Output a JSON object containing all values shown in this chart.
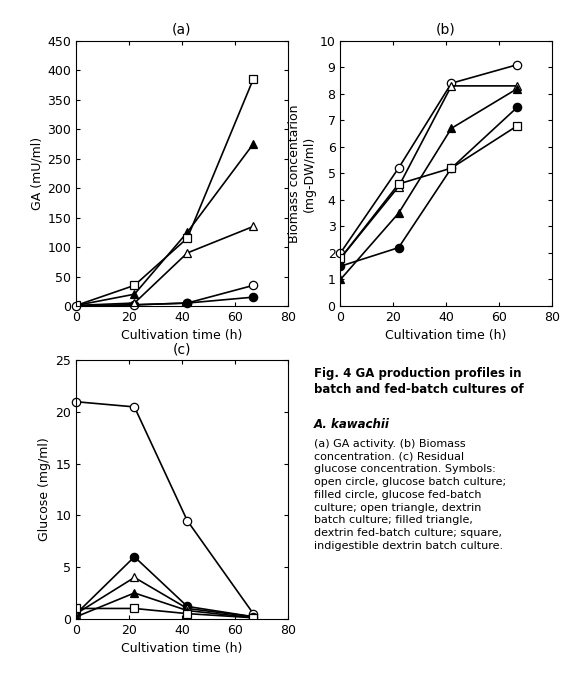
{
  "time_points": [
    0,
    22,
    42,
    67
  ],
  "panel_a": {
    "title": "(a)",
    "ylabel": "GA (mU/ml)",
    "xlabel": "Cultivation time (h)",
    "ylim": [
      0,
      450
    ],
    "yticks": [
      0,
      50,
      100,
      150,
      200,
      250,
      300,
      350,
      400,
      450
    ],
    "xlim": [
      0,
      80
    ],
    "xticks": [
      0,
      20,
      40,
      60,
      80
    ],
    "open_circle": [
      0,
      2,
      5,
      35
    ],
    "filled_circle": [
      0,
      2,
      5,
      15
    ],
    "open_triangle": [
      1,
      5,
      90,
      135
    ],
    "filled_triangle": [
      1,
      20,
      125,
      275
    ],
    "open_square": [
      1,
      35,
      115,
      385
    ]
  },
  "panel_b": {
    "title": "(b)",
    "ylabel": "Biomass concentarion\n(mg-DW/ml)",
    "xlabel": "Cultivation time (h)",
    "ylim": [
      0,
      10
    ],
    "yticks": [
      0,
      1,
      2,
      3,
      4,
      5,
      6,
      7,
      8,
      9,
      10
    ],
    "xlim": [
      0,
      80
    ],
    "xticks": [
      0,
      20,
      40,
      60,
      80
    ],
    "open_circle": [
      2.0,
      5.2,
      8.4,
      9.1
    ],
    "filled_circle": [
      1.5,
      2.2,
      5.2,
      7.5
    ],
    "open_triangle": [
      1.8,
      4.5,
      8.3,
      8.3
    ],
    "filled_triangle": [
      1.0,
      3.5,
      6.7,
      8.2
    ],
    "open_square": [
      1.8,
      4.6,
      5.2,
      6.8
    ]
  },
  "panel_c": {
    "title": "(c)",
    "ylabel": "Glucose (mg/ml)",
    "xlabel": "Cultivation time (h)",
    "ylim": [
      0,
      25
    ],
    "yticks": [
      0,
      5,
      10,
      15,
      20,
      25
    ],
    "xlim": [
      0,
      80
    ],
    "xticks": [
      0,
      20,
      40,
      60,
      80
    ],
    "open_circle": [
      21.0,
      20.5,
      9.5,
      0.5
    ],
    "filled_circle": [
      0.5,
      6.0,
      1.2,
      0.2
    ],
    "open_triangle": [
      0.5,
      4.0,
      1.0,
      0.2
    ],
    "filled_triangle": [
      0.2,
      2.5,
      0.8,
      0.1
    ],
    "open_square": [
      1.0,
      1.0,
      0.5,
      0.1
    ]
  },
  "bg_color": "#ffffff",
  "line_color": "#000000",
  "marker_size": 6,
  "linewidth": 1.2,
  "tick_labelsize": 9,
  "axis_labelsize": 9,
  "title_fontsize": 10
}
